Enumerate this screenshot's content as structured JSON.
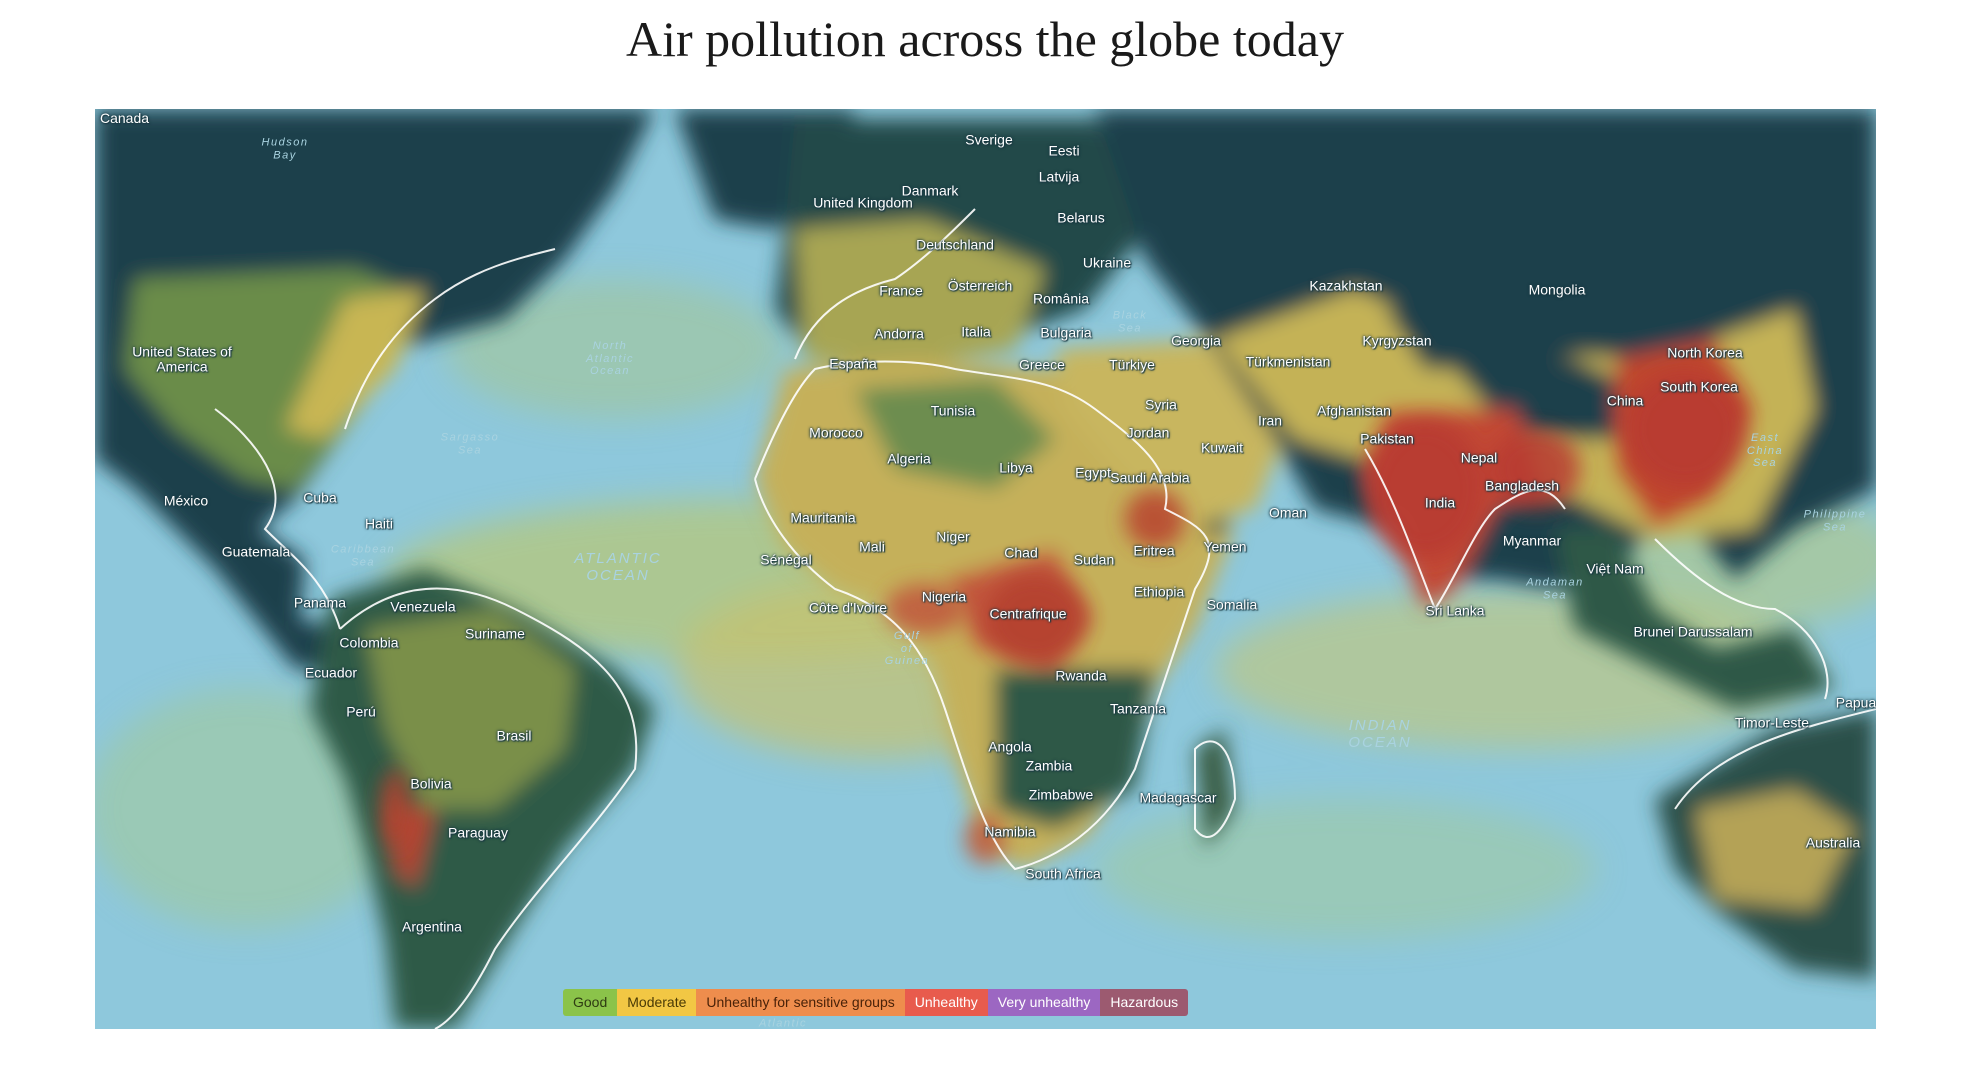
{
  "title": "Air pollution across the globe today",
  "legend": [
    {
      "label": "Good",
      "bg": "#8bc34a",
      "fg": "#2e3b12"
    },
    {
      "label": "Moderate",
      "bg": "#f2c744",
      "fg": "#4a3a05"
    },
    {
      "label": "Unhealthy for sensitive groups",
      "bg": "#ee8d4d",
      "fg": "#4a2208"
    },
    {
      "label": "Unhealthy",
      "bg": "#e85b4d",
      "fg": "#ffffff"
    },
    {
      "label": "Very unhealthy",
      "bg": "#9c67c2",
      "fg": "#ffffff"
    },
    {
      "label": "Hazardous",
      "bg": "#9c5a70",
      "fg": "#ffffff"
    }
  ],
  "colors": {
    "ocean": "#8ec8dc",
    "land_clean": "#1e414b",
    "land_good": "#5d8a52",
    "moderate": "#cdbb55",
    "sensitive": "#d38a45",
    "unhealthy": "#b83a30"
  },
  "places": [
    "Canada",
    "Sverige",
    "Eesti",
    "Latvija",
    "United Kingdom",
    "Danmark",
    "Belarus",
    "Deutschland",
    "Ukraine",
    "France",
    "Österreich",
    "România",
    "Andorra",
    "Italia",
    "Bulgaria",
    "Georgia",
    "España",
    "Greece",
    "Türkiye",
    "Tunisia",
    "Syria",
    "Morocco",
    "Jordan",
    "Algeria",
    "Libya",
    "Egypt",
    "Saudi Arabia",
    "Kuwait",
    "United States of America",
    "México",
    "Cuba",
    "Haiti",
    "Guatemala",
    "Panama",
    "Venezuela",
    "Colombia",
    "Suriname",
    "Ecuador",
    "Perú",
    "Brasil",
    "Bolivia",
    "Paraguay",
    "Argentina",
    "Mauritania",
    "Mali",
    "Niger",
    "Chad",
    "Sudan",
    "Eritrea",
    "Yemen",
    "Sénégal",
    "Nigeria",
    "Ethiopia",
    "Somalia",
    "Côte d'Ivoire",
    "Centrafrique",
    "Rwanda",
    "Tanzania",
    "Angola",
    "Zambia",
    "Zimbabwe",
    "Madagascar",
    "Namibia",
    "South Africa",
    "Kazakhstan",
    "Mongolia",
    "Kyrgyzstan",
    "Türkmenistan",
    "North Korea",
    "South Korea",
    "Iran",
    "Afghanistan",
    "China",
    "Pakistan",
    "Nepal",
    "Bangladesh",
    "India",
    "Oman",
    "Myanmar",
    "Việt Nam",
    "Sri Lanka",
    "Brunei Darussalam",
    "Papua",
    "Timor-Leste",
    "Australia"
  ],
  "oceans": [
    "Hudson Bay",
    "North Atlantic Ocean",
    "Sargasso Sea",
    "Caribbean Sea",
    "ATLANTIC OCEAN",
    "Gulf of Guinea",
    "INDIAN OCEAN",
    "Philippine Sea",
    "East China Sea",
    "Andaman Sea",
    "Black Sea",
    "South Atlantic"
  ]
}
